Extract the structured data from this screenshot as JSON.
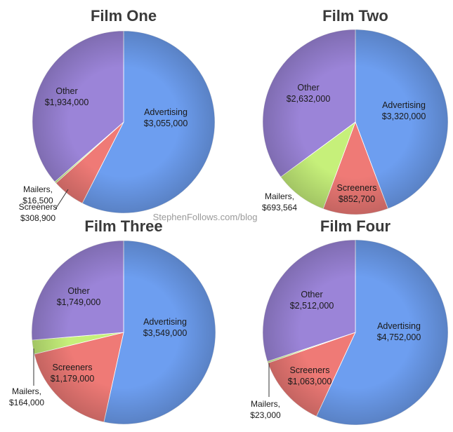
{
  "watermark": "StephenFollows.com/blog",
  "colors": {
    "advertising": "#6d9ef0",
    "screeners": "#ef7a76",
    "mailers": "#c6f07a",
    "other": "#9b84d8"
  },
  "chart_data": [
    {
      "type": "pie",
      "title": "Film One",
      "slices": [
        {
          "label": "Advertising",
          "value": 3055000,
          "display": "$3,055,000"
        },
        {
          "label": "Screeners",
          "value": 308900,
          "display": "$308,900"
        },
        {
          "label": "Mailers,",
          "value": 16500,
          "display": "$16,500"
        },
        {
          "label": "Other",
          "value": 1934000,
          "display": "$1,934,000"
        }
      ]
    },
    {
      "type": "pie",
      "title": "Film Two",
      "slices": [
        {
          "label": "Advertising",
          "value": 3320000,
          "display": "$3,320,000"
        },
        {
          "label": "Screeners",
          "value": 852700,
          "display": "$852,700"
        },
        {
          "label": "Mailers,",
          "value": 693564,
          "display": "$693,564"
        },
        {
          "label": "Other",
          "value": 2632000,
          "display": "$2,632,000"
        }
      ]
    },
    {
      "type": "pie",
      "title": "Film Three",
      "slices": [
        {
          "label": "Advertising",
          "value": 3549000,
          "display": "$3,549,000"
        },
        {
          "label": "Screeners",
          "value": 1179000,
          "display": "$1,179,000"
        },
        {
          "label": "Mailers,",
          "value": 164000,
          "display": "$164,000"
        },
        {
          "label": "Other",
          "value": 1749000,
          "display": "$1,749,000"
        }
      ]
    },
    {
      "type": "pie",
      "title": "Film Four",
      "slices": [
        {
          "label": "Advertising",
          "value": 4752000,
          "display": "$4,752,000"
        },
        {
          "label": "Screeners",
          "value": 1063000,
          "display": "$1,063,000"
        },
        {
          "label": "Mailers,",
          "value": 23000,
          "display": "$23,000"
        },
        {
          "label": "Other",
          "value": 2512000,
          "display": "$2,512,000"
        }
      ]
    }
  ]
}
